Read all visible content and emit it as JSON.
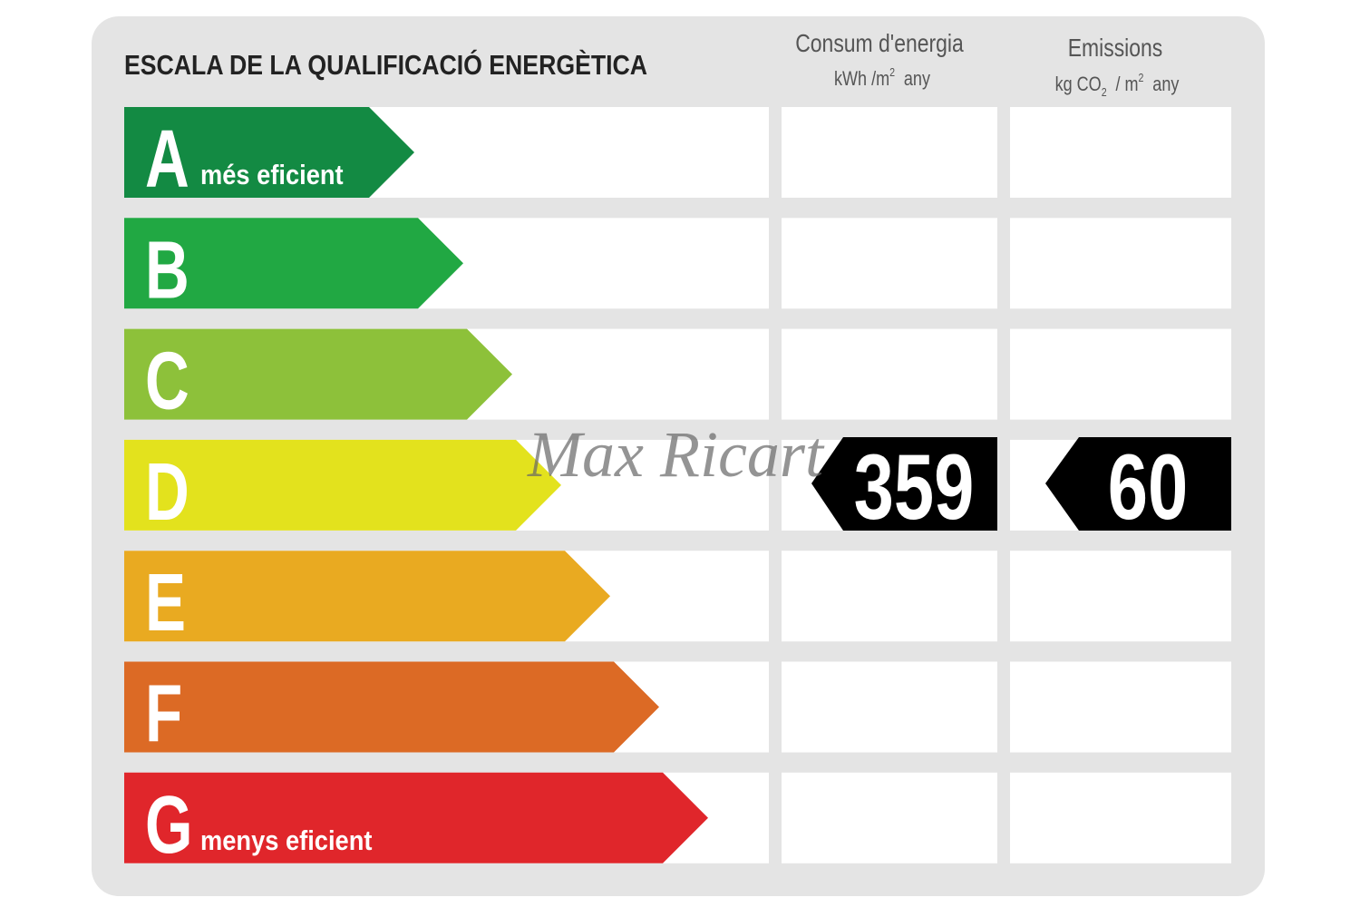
{
  "header": {
    "title": "ESCALA DE LA QUALIFICACIÓ ENERGÈTICA",
    "consumption": {
      "label": "Consum d'energia",
      "unit": [
        "kWh /m",
        "2",
        "any"
      ]
    },
    "emissions": {
      "label": "Emissions",
      "unit": [
        "kg CO",
        "2",
        "/ m",
        "2",
        "any"
      ]
    }
  },
  "rows": [
    {
      "letter": "A",
      "note": "més eficient"
    },
    {
      "letter": "B"
    },
    {
      "letter": "C"
    },
    {
      "letter": "D"
    },
    {
      "letter": "E"
    },
    {
      "letter": "F"
    },
    {
      "letter": "G",
      "note": "menys eficient"
    }
  ],
  "rating": {
    "consumption": "359",
    "emissions": "60"
  },
  "watermark": "Max Ricart"
}
